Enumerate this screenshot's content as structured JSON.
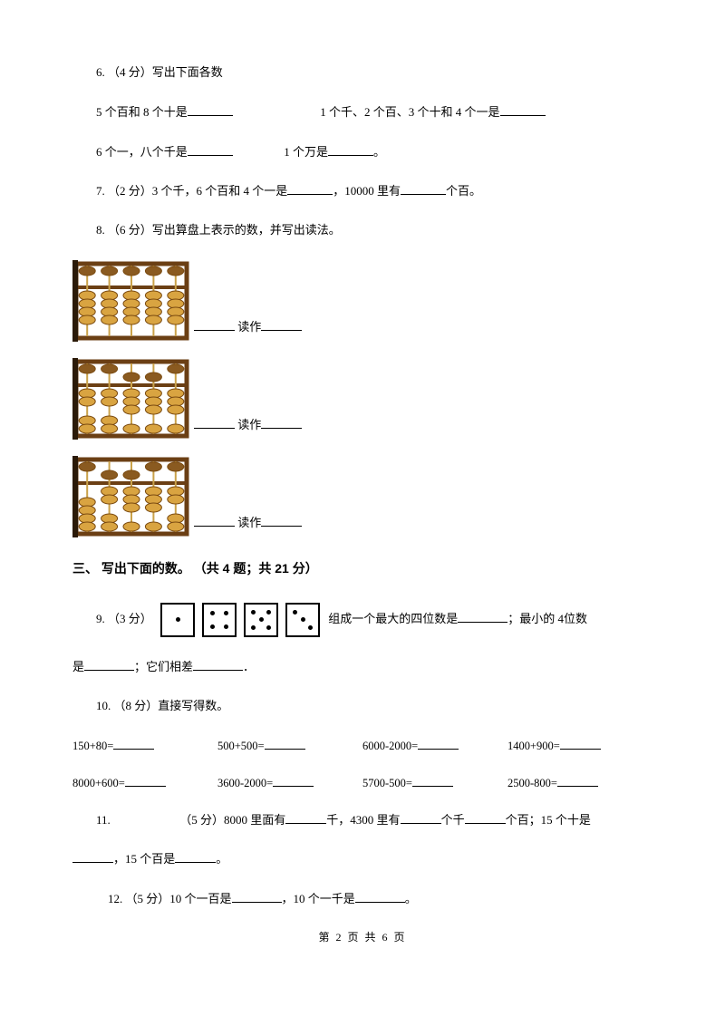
{
  "q6": {
    "label": "6. （4 分）写出下面各数",
    "r1a": "5 个百和 8 个十是",
    "r1b": "1 个千、2 个百、3 个十和 4 个一是",
    "r2a": "6 个一，八个千是",
    "r2b": "1 个万是",
    "period": "。"
  },
  "q7": {
    "prefix": "7. （2 分）3 个千，6 个百和 4 个一是",
    "mid": "，10000 里有",
    "suffix": "个百。"
  },
  "q8": {
    "label": "8. （6 分）写出算盘上表示的数，并写出读法。",
    "read": "读作",
    "abacus": {
      "frame_color": "#6b3f14",
      "bead_color": "#d9a441",
      "bead_dark": "#8a5a20",
      "bead_stroke": "#7a4a10",
      "rod_color": "#caa24a",
      "rows": [
        {
          "upper": [
            0,
            0,
            0,
            0,
            0
          ],
          "lower": [
            4,
            4,
            4,
            4,
            4
          ]
        },
        {
          "upper": [
            0,
            0,
            1,
            1,
            0
          ],
          "lower": [
            2,
            2,
            3,
            3,
            3
          ]
        },
        {
          "upper": [
            0,
            1,
            1,
            0,
            0
          ],
          "lower": [
            0,
            2,
            3,
            3,
            2
          ]
        }
      ]
    }
  },
  "section3": "三、 写出下面的数。 （共 4 题；共 21 分）",
  "q9": {
    "prefix": "9. （3 分）",
    "mid": "组成一个最大的四位数是",
    "mid2": "；最小的 4位数",
    "line2a": "是",
    "line2b": "；它们相差",
    "line2c": "．",
    "dice": [
      1,
      4,
      5,
      3
    ]
  },
  "q10": {
    "label": "10. （8 分）直接写得数。",
    "items": [
      "150+80=",
      "500+500=",
      "6000-2000=",
      "1400+900=",
      "8000+600=",
      "3600-2000=",
      "5700-500=",
      "2500-800="
    ]
  },
  "q11": {
    "prefix": "11.",
    "pts": "（5 分）8000 里面有",
    "a": "千，4300 里有",
    "b": "个千",
    "c": "个百；15 个十是",
    "line2a": "，15 个百是",
    "line2b": "。"
  },
  "q12": {
    "prefix": "12. （5 分）10 个一百是",
    "mid": "，10 个一千是",
    "suffix": "。"
  },
  "footer": "第 2 页 共 6 页"
}
